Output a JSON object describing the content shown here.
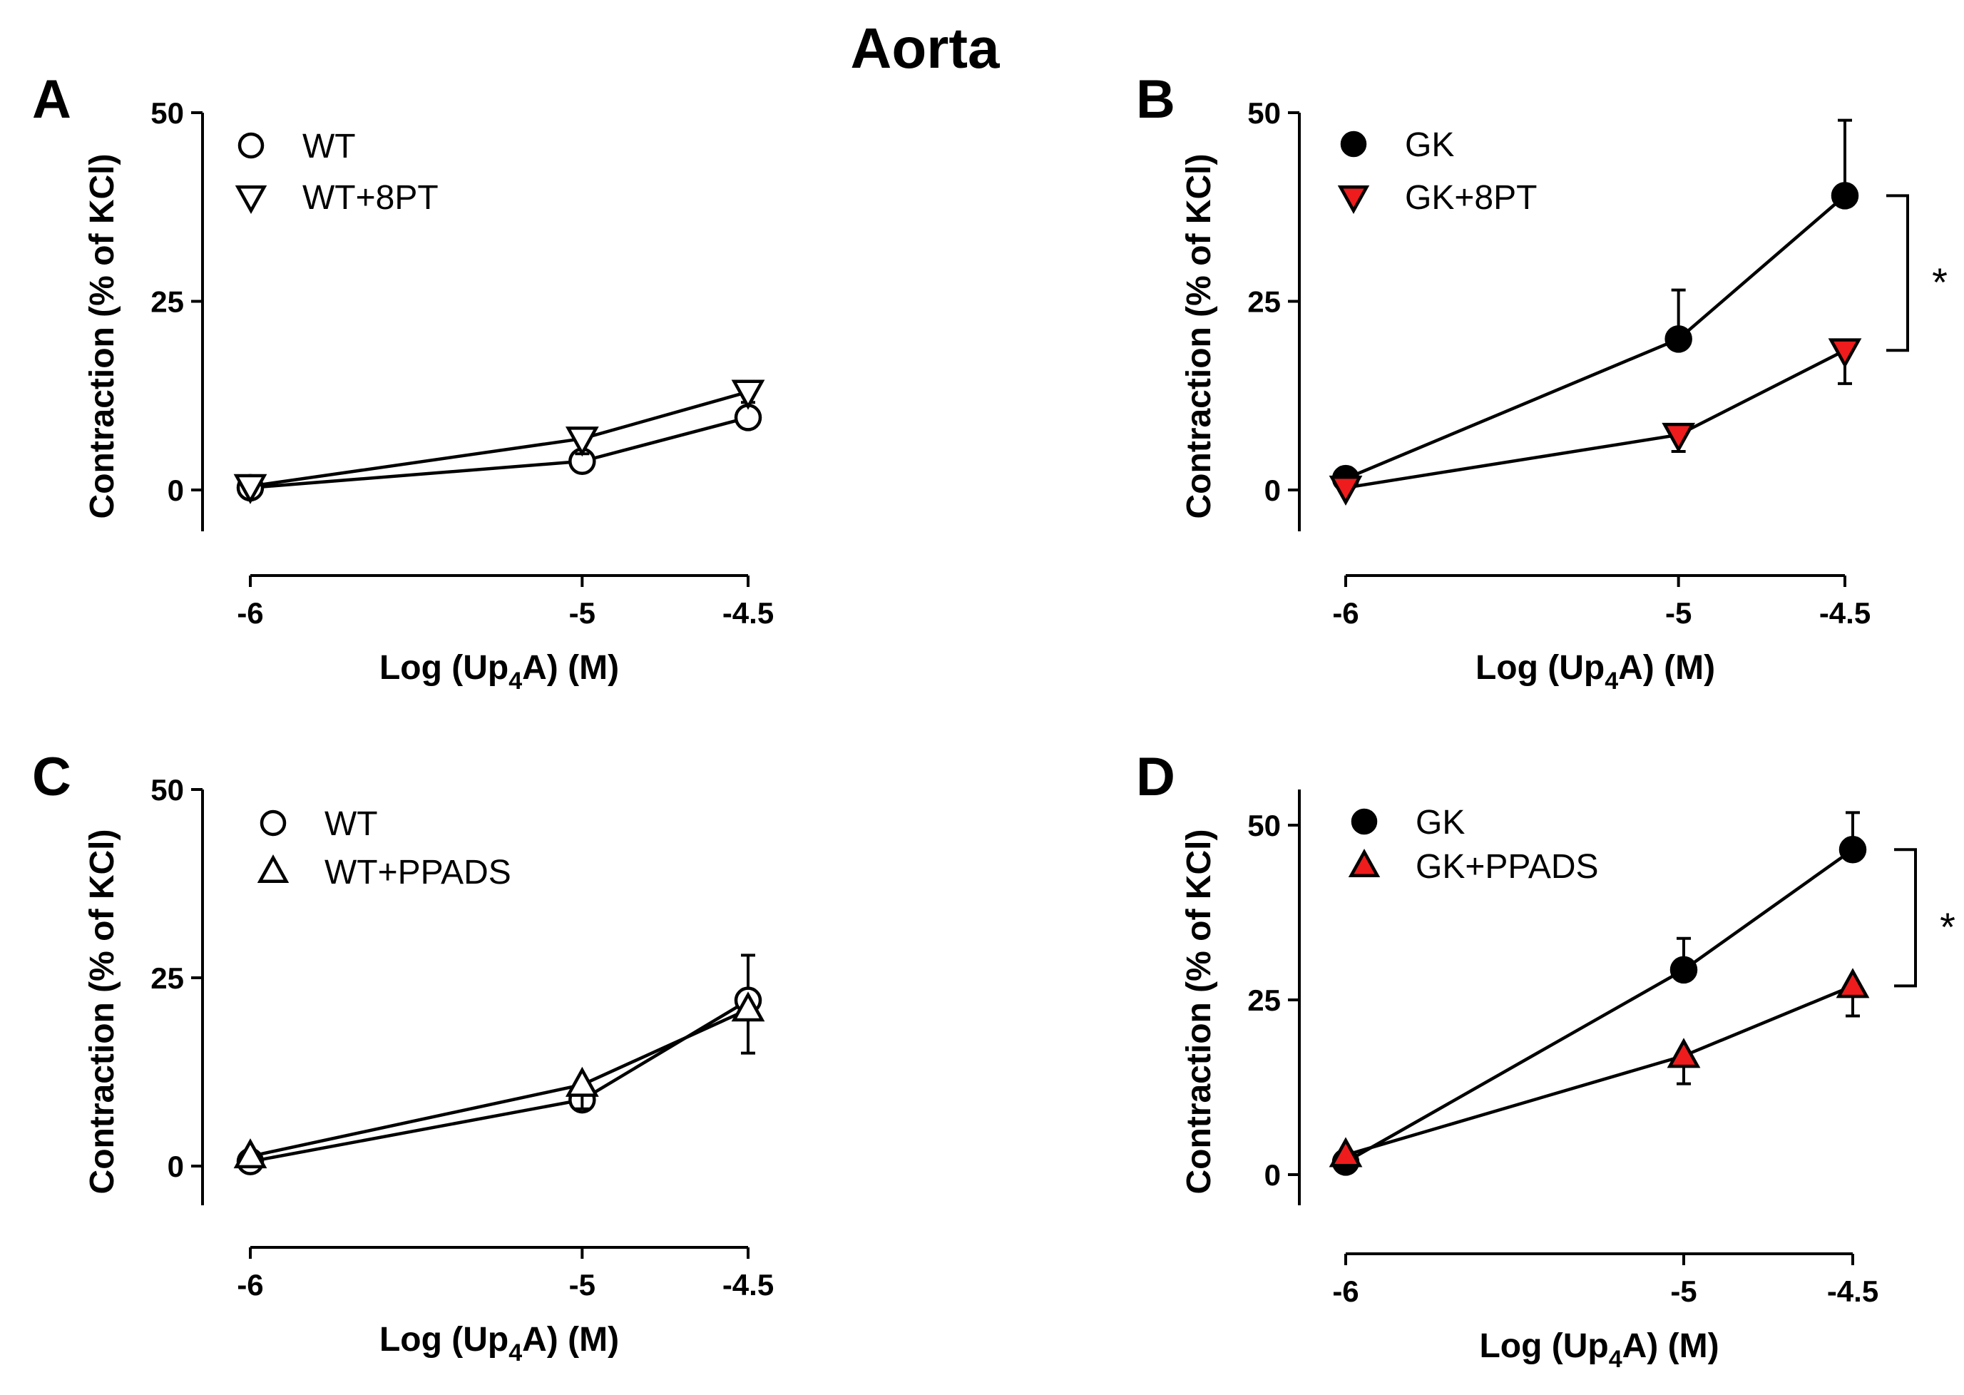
{
  "title": "Aorta",
  "colors": {
    "line": "#000000",
    "open_fill": "#ffffff",
    "filled_black": "#000000",
    "filled_red": "#ee1c1c"
  },
  "chart_data": [
    {
      "panel": "A",
      "type": "line",
      "xlabel": "Log (Up4A) (M)",
      "xlabel_parts": {
        "pre": "Log (Up",
        "sub": "4",
        "post": "A) (M)"
      },
      "ylabel": "Contraction (% of KCl)",
      "x": [
        -6,
        -5,
        -4.5
      ],
      "x_tick_labels": [
        "-6",
        "-5",
        "-4.5"
      ],
      "y_ticks": [
        0,
        25,
        50
      ],
      "y_tick_labels": [
        "0",
        "25",
        "50"
      ],
      "ylim": [
        -5.5,
        50
      ],
      "legend_position": "top-left",
      "series": [
        {
          "name": "WT",
          "marker": "circle-open",
          "values": [
            0.3,
            3.8,
            9.6
          ],
          "errors": [
            0,
            0,
            2.0
          ]
        },
        {
          "name": "WT+8PT",
          "marker": "triangle-down-open",
          "values": [
            0.5,
            6.8,
            13.0
          ],
          "errors": [
            0,
            2.0,
            0
          ]
        }
      ]
    },
    {
      "panel": "B",
      "type": "line",
      "xlabel": "Log (Up4A) (M)",
      "xlabel_parts": {
        "pre": "Log (Up",
        "sub": "4",
        "post": "A) (M)"
      },
      "ylabel": "Contraction (% of KCl)",
      "x": [
        -6,
        -5,
        -4.5
      ],
      "x_tick_labels": [
        "-6",
        "-5",
        "-4.5"
      ],
      "y_ticks": [
        0,
        25,
        50
      ],
      "y_tick_labels": [
        "0",
        "25",
        "50"
      ],
      "ylim": [
        -5.5,
        50
      ],
      "legend_position": "top-left",
      "significance": {
        "label": "*",
        "between": [
          "GK",
          "GK+8PT"
        ]
      },
      "series": [
        {
          "name": "GK",
          "marker": "circle-filled-black",
          "values": [
            1.5,
            20.0,
            39.0
          ],
          "errors": [
            0,
            6.5,
            10.0
          ]
        },
        {
          "name": "GK+8PT",
          "marker": "triangle-down-red",
          "values": [
            0.3,
            7.3,
            18.5
          ],
          "errors": [
            0,
            2.2,
            4.4
          ]
        }
      ]
    },
    {
      "panel": "C",
      "type": "line",
      "xlabel": "Log (Up4A) (M)",
      "xlabel_parts": {
        "pre": "Log (Up",
        "sub": "4",
        "post": "A) (M)"
      },
      "ylabel": "Contraction (% of KCl)",
      "x": [
        -6,
        -5,
        -4.5
      ],
      "x_tick_labels": [
        "-6",
        "-5",
        "-4.5"
      ],
      "y_ticks": [
        0,
        25,
        50
      ],
      "y_tick_labels": [
        "0",
        "25",
        "50"
      ],
      "ylim": [
        -5.5,
        50
      ],
      "legend_position": "top-left",
      "series": [
        {
          "name": "WT",
          "marker": "circle-open",
          "values": [
            0.6,
            8.8,
            22.0
          ],
          "errors": [
            0,
            2.0,
            6.0
          ]
        },
        {
          "name": "WT+PPADS",
          "marker": "triangle-up-open",
          "values": [
            1.3,
            10.8,
            20.8
          ],
          "errors": [
            0,
            3.2,
            5.8
          ]
        }
      ]
    },
    {
      "panel": "D",
      "type": "line",
      "xlabel": "Log (Up4A) (M)",
      "xlabel_parts": {
        "pre": "Log (Up",
        "sub": "4",
        "post": "A) (M)"
      },
      "ylabel": "Contraction (% of KCl)",
      "x": [
        -6,
        -5,
        -4.5
      ],
      "x_tick_labels": [
        "-6",
        "-5",
        "-4.5"
      ],
      "y_ticks": [
        0,
        25,
        50
      ],
      "y_tick_labels": [
        "0",
        "25",
        "50"
      ],
      "ylim": [
        -5.5,
        55
      ],
      "legend_position": "top-left",
      "significance": {
        "label": "*",
        "between": [
          "GK",
          "GK+PPADS"
        ]
      },
      "series": [
        {
          "name": "GK",
          "marker": "circle-filled-black",
          "values": [
            1.8,
            29.3,
            46.5
          ],
          "errors": [
            0,
            4.5,
            5.3
          ]
        },
        {
          "name": "GK+PPADS",
          "marker": "triangle-up-red",
          "values": [
            2.8,
            17.0,
            27.0
          ],
          "errors": [
            0,
            4.0,
            4.3
          ]
        }
      ]
    }
  ]
}
